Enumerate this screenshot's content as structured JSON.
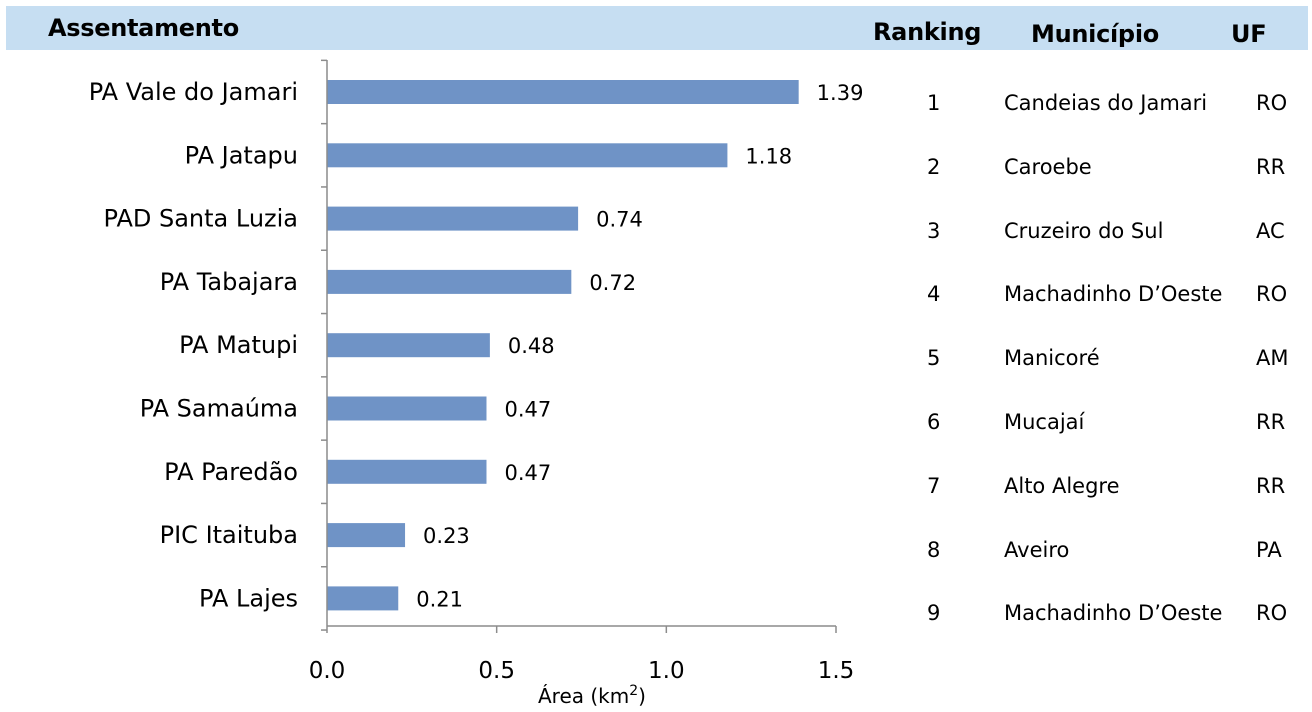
{
  "header": {
    "assentamento": "Assentamento",
    "ranking": "Ranking",
    "municipio": "Município",
    "uf": "UF"
  },
  "colors": {
    "header_band": "#c6def2",
    "bar": "#6f93c6",
    "axis": "#8c8c8c"
  },
  "chart_data": {
    "type": "bar",
    "orientation": "horizontal",
    "categories": [
      "PA Vale do Jamari",
      "PA Jatapu",
      "PAD Santa Luzia",
      "PA Tabajara",
      "PA Matupi",
      "PA Samaúma",
      "PA Paredão",
      "PIC Itaituba",
      "PA Lajes"
    ],
    "values": [
      1.39,
      1.18,
      0.74,
      0.72,
      0.48,
      0.47,
      0.47,
      0.23,
      0.21
    ],
    "value_labels": [
      "1.39",
      "1.18",
      "0.74",
      "0.72",
      "0.48",
      "0.47",
      "0.47",
      "0.23",
      "0.21"
    ],
    "x_ticks": [
      0.0,
      0.5,
      1.0,
      1.5
    ],
    "x_tick_labels": [
      "0.0",
      "0.5",
      "1.0",
      "1.5"
    ],
    "xlim": [
      0,
      1.5
    ],
    "xlabel_main": "Área (km",
    "xlabel_sup": "2",
    "xlabel_end": ")",
    "grid": false
  },
  "ranking_table": [
    {
      "rank": "1",
      "municipio": "Candeias do Jamari",
      "uf": "RO"
    },
    {
      "rank": "2",
      "municipio": "Caroebe",
      "uf": "RR"
    },
    {
      "rank": "3",
      "municipio": "Cruzeiro do Sul",
      "uf": "AC"
    },
    {
      "rank": "4",
      "municipio": "Machadinho D’Oeste",
      "uf": "RO"
    },
    {
      "rank": "5",
      "municipio": "Manicoré",
      "uf": "AM"
    },
    {
      "rank": "6",
      "municipio": "Mucajaí",
      "uf": "RR"
    },
    {
      "rank": "7",
      "municipio": "Alto Alegre",
      "uf": "RR"
    },
    {
      "rank": "8",
      "municipio": "Aveiro",
      "uf": "PA"
    },
    {
      "rank": "9",
      "municipio": "Machadinho D’Oeste",
      "uf": "RO"
    }
  ]
}
